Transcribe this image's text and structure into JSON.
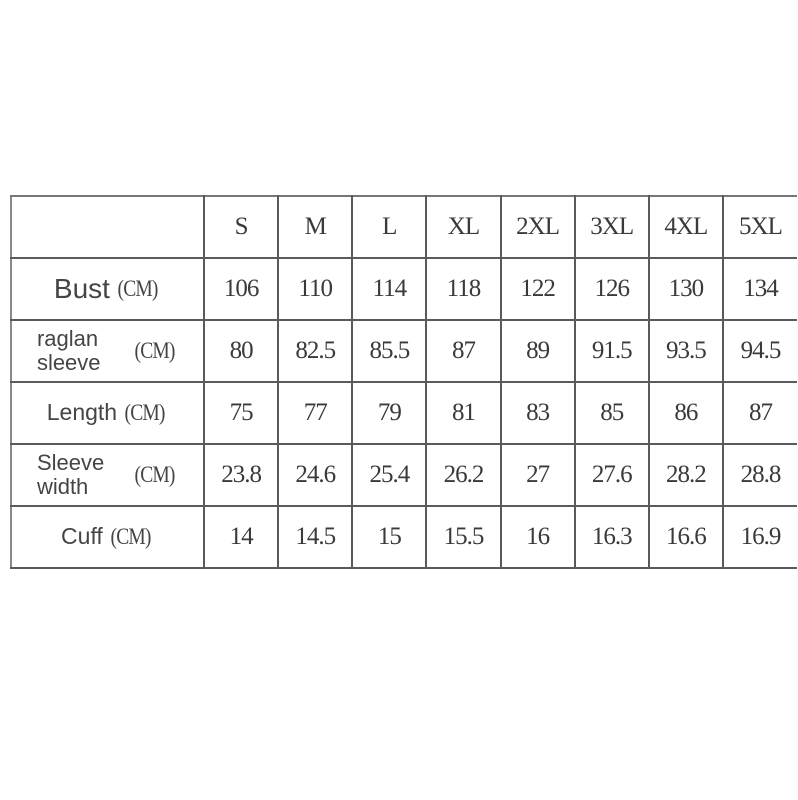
{
  "size_chart": {
    "sizes": [
      "S",
      "M",
      "L",
      "XL",
      "2XL",
      "3XL",
      "4XL",
      "5XL"
    ],
    "rows": [
      {
        "name": "Bust",
        "unit": "(CM)",
        "values": [
          "106",
          "110",
          "114",
          "118",
          "122",
          "126",
          "130",
          "134"
        ]
      },
      {
        "name": "raglan sleeve",
        "unit": "(CM)",
        "values": [
          "80",
          "82.5",
          "85.5",
          "87",
          "89",
          "91.5",
          "93.5",
          "94.5"
        ]
      },
      {
        "name": "Length",
        "unit": "(CM)",
        "values": [
          "75",
          "77",
          "79",
          "81",
          "83",
          "85",
          "86",
          "87"
        ]
      },
      {
        "name": "Sleeve width",
        "unit": "(CM)",
        "values": [
          "23.8",
          "24.6",
          "25.4",
          "26.2",
          "27",
          "27.6",
          "28.2",
          "28.8"
        ]
      },
      {
        "name": "Cuff",
        "unit": "(CM)",
        "values": [
          "14",
          "14.5",
          "15",
          "15.5",
          "16",
          "16.3",
          "16.6",
          "16.9"
        ]
      }
    ]
  }
}
